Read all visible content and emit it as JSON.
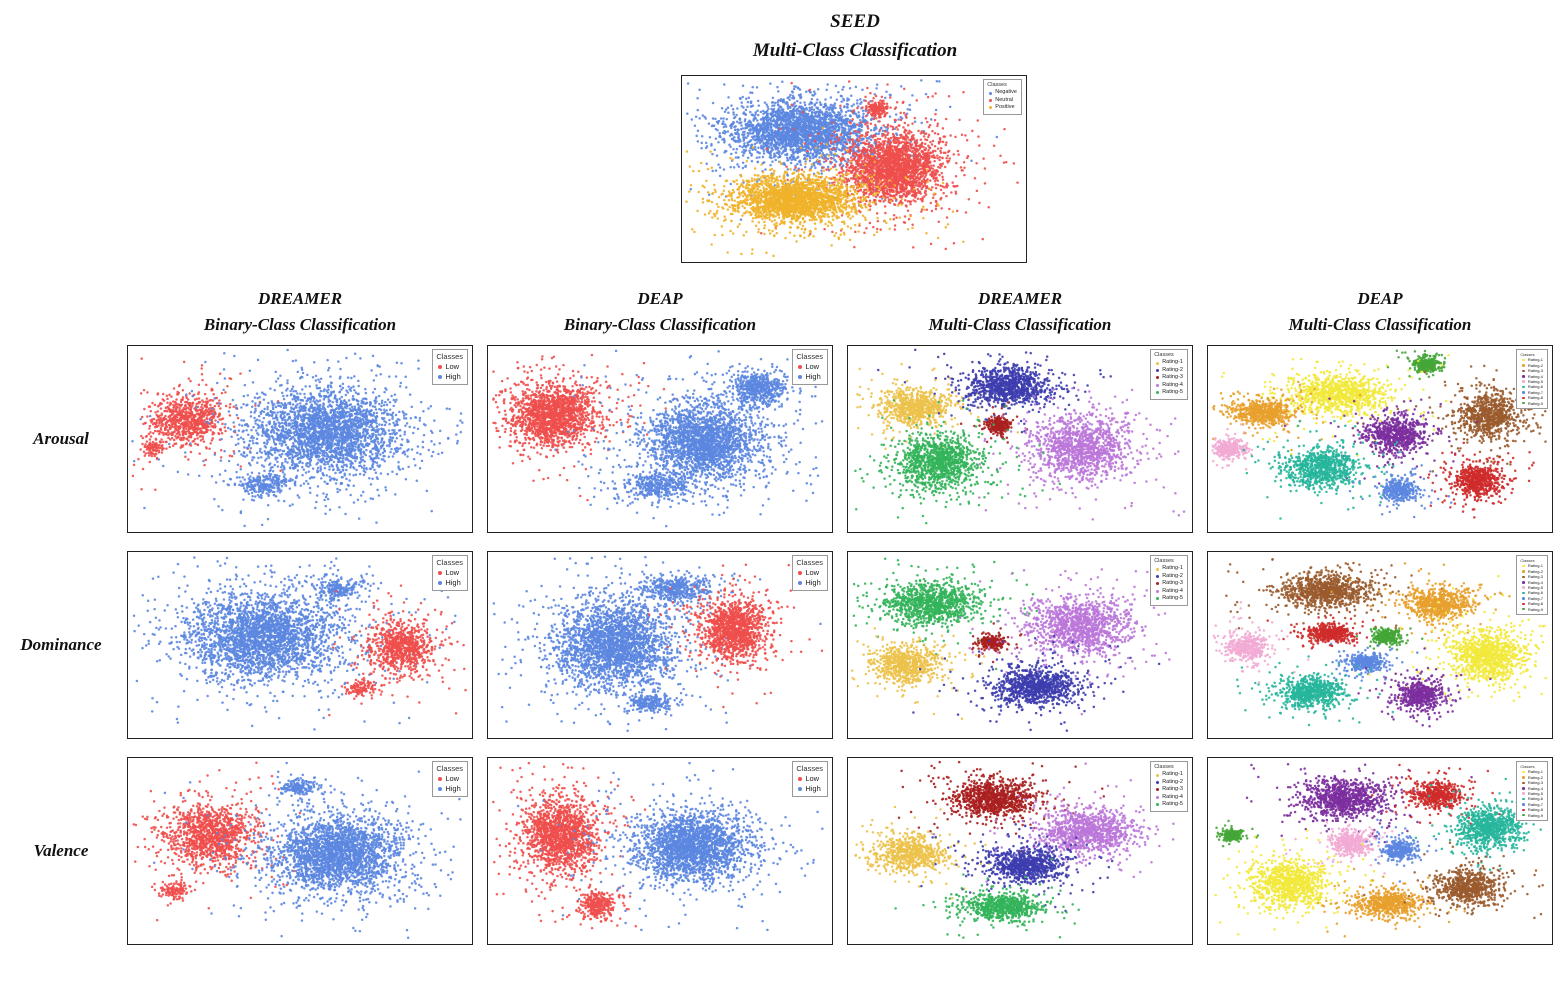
{
  "figure": {
    "seed": {
      "title_line1": "SEED",
      "title_line2": "Multi-Class Classification"
    },
    "columns": [
      {
        "title_line1": "DREAMER",
        "title_line2": "Binary-Class Classification"
      },
      {
        "title_line1": "DEAP",
        "title_line2": "Binary-Class Classification"
      },
      {
        "title_line1": "DREAMER",
        "title_line2": "Multi-Class Classification"
      },
      {
        "title_line1": "DEAP",
        "title_line2": "Multi-Class Classification"
      }
    ],
    "rows": [
      {
        "label": "Arousal"
      },
      {
        "label": "Dominance"
      },
      {
        "label": "Valence"
      }
    ]
  },
  "legends": {
    "seed": {
      "title": "Classes",
      "entries": [
        {
          "label": "Negative",
          "color": "#5c87e0"
        },
        {
          "label": "Neutral",
          "color": "#ee4f4d"
        },
        {
          "label": "Positive",
          "color": "#f0b32a"
        }
      ]
    },
    "binary": {
      "title": "Classes",
      "entries": [
        {
          "label": "Low",
          "color": "#ee4f4d"
        },
        {
          "label": "High",
          "color": "#5c87e0"
        }
      ]
    },
    "dreamer5": {
      "title": "Classes",
      "entries": [
        {
          "label": "Rating-1",
          "color": "#ecc24a"
        },
        {
          "label": "Rating-2",
          "color": "#3d3daf"
        },
        {
          "label": "Rating-3",
          "color": "#aa1f1f"
        },
        {
          "label": "Rating-4",
          "color": "#bb77d9"
        },
        {
          "label": "Rating-5",
          "color": "#33b45a"
        }
      ]
    },
    "deap9": {
      "title": "Classes",
      "entries": [
        {
          "label": "Rating-1",
          "color": "#f2e93c"
        },
        {
          "label": "Rating-2",
          "color": "#e8a02c"
        },
        {
          "label": "Rating-3",
          "color": "#9a5b2e"
        },
        {
          "label": "Rating-4",
          "color": "#7c2f9f"
        },
        {
          "label": "Rating-5",
          "color": "#f2abd4"
        },
        {
          "label": "Rating-6",
          "color": "#27b69c"
        },
        {
          "label": "Rating-7",
          "color": "#5c87e0"
        },
        {
          "label": "Rating-8",
          "color": "#cf2b2b"
        },
        {
          "label": "Rating-9",
          "color": "#44a637"
        }
      ]
    }
  },
  "chart_data": [
    {
      "id": "seed-multi",
      "type": "scatter",
      "dataset": "SEED",
      "task": "Multi-Class Classification",
      "legend": "seed",
      "clusters": [
        {
          "class": "Negative",
          "color": "#5c87e0",
          "cx": 0.35,
          "cy": 0.3,
          "rx": 0.2,
          "ry": 0.17,
          "n": 2600
        },
        {
          "class": "Neutral",
          "color": "#ee4f4d",
          "cx": 0.62,
          "cy": 0.5,
          "rx": 0.13,
          "ry": 0.18,
          "n": 2300
        },
        {
          "class": "Neutral",
          "color": "#ee4f4d",
          "cx": 0.57,
          "cy": 0.18,
          "rx": 0.03,
          "ry": 0.04,
          "n": 150
        },
        {
          "class": "Positive",
          "color": "#f0b32a",
          "cx": 0.33,
          "cy": 0.67,
          "rx": 0.17,
          "ry": 0.12,
          "n": 2300
        }
      ]
    },
    {
      "id": "arousal-dreamer-binary",
      "type": "scatter",
      "dataset": "DREAMER",
      "task": "Binary",
      "measure": "Arousal",
      "legend": "binary",
      "clusters": [
        {
          "class": "Low",
          "color": "#ee4f4d",
          "cx": 0.17,
          "cy": 0.4,
          "rx": 0.1,
          "ry": 0.13,
          "n": 800
        },
        {
          "class": "Low",
          "color": "#ee4f4d",
          "cx": 0.07,
          "cy": 0.55,
          "rx": 0.03,
          "ry": 0.04,
          "n": 90
        },
        {
          "class": "High",
          "color": "#5c87e0",
          "cx": 0.58,
          "cy": 0.47,
          "rx": 0.21,
          "ry": 0.23,
          "n": 2700
        },
        {
          "class": "High",
          "color": "#5c87e0",
          "cx": 0.4,
          "cy": 0.75,
          "rx": 0.07,
          "ry": 0.06,
          "n": 260
        }
      ]
    },
    {
      "id": "arousal-deap-binary",
      "type": "scatter",
      "dataset": "DEAP",
      "task": "Binary",
      "measure": "Arousal",
      "legend": "binary",
      "clusters": [
        {
          "class": "Low",
          "color": "#ee4f4d",
          "cx": 0.19,
          "cy": 0.37,
          "rx": 0.12,
          "ry": 0.16,
          "n": 1700
        },
        {
          "class": "High",
          "color": "#5c87e0",
          "cx": 0.63,
          "cy": 0.52,
          "rx": 0.16,
          "ry": 0.2,
          "n": 2300
        },
        {
          "class": "High",
          "color": "#5c87e0",
          "cx": 0.79,
          "cy": 0.23,
          "rx": 0.08,
          "ry": 0.09,
          "n": 550
        },
        {
          "class": "High",
          "color": "#5c87e0",
          "cx": 0.5,
          "cy": 0.76,
          "rx": 0.09,
          "ry": 0.07,
          "n": 380
        }
      ]
    },
    {
      "id": "arousal-dreamer-multi",
      "type": "scatter",
      "dataset": "DREAMER",
      "task": "Multi",
      "measure": "Arousal",
      "legend": "dreamer5",
      "clusters": [
        {
          "class": "Rating-1",
          "color": "#ecc24a",
          "cx": 0.2,
          "cy": 0.33,
          "rx": 0.1,
          "ry": 0.09,
          "n": 750
        },
        {
          "class": "Rating-2",
          "color": "#3d3daf",
          "cx": 0.47,
          "cy": 0.22,
          "rx": 0.12,
          "ry": 0.1,
          "n": 950
        },
        {
          "class": "Rating-3",
          "color": "#aa1f1f",
          "cx": 0.44,
          "cy": 0.43,
          "rx": 0.035,
          "ry": 0.045,
          "n": 230
        },
        {
          "class": "Rating-4",
          "color": "#bb77d9",
          "cx": 0.68,
          "cy": 0.55,
          "rx": 0.14,
          "ry": 0.16,
          "n": 1250
        },
        {
          "class": "Rating-5",
          "color": "#33b45a",
          "cx": 0.26,
          "cy": 0.63,
          "rx": 0.12,
          "ry": 0.14,
          "n": 1150
        }
      ]
    },
    {
      "id": "arousal-deap-multi",
      "type": "scatter",
      "dataset": "DEAP",
      "task": "Multi",
      "measure": "Arousal",
      "legend": "deap9",
      "clusters": [
        {
          "class": "Rating-9",
          "color": "#44a637",
          "cx": 0.64,
          "cy": 0.1,
          "rx": 0.04,
          "ry": 0.05,
          "n": 260
        },
        {
          "class": "Rating-1",
          "color": "#f2e93c",
          "cx": 0.38,
          "cy": 0.26,
          "rx": 0.13,
          "ry": 0.1,
          "n": 1050
        },
        {
          "class": "Rating-2",
          "color": "#e8a02c",
          "cx": 0.16,
          "cy": 0.36,
          "rx": 0.09,
          "ry": 0.07,
          "n": 620
        },
        {
          "class": "Rating-3",
          "color": "#9a5b2e",
          "cx": 0.82,
          "cy": 0.38,
          "rx": 0.09,
          "ry": 0.12,
          "n": 820
        },
        {
          "class": "Rating-5",
          "color": "#f2abd4",
          "cx": 0.06,
          "cy": 0.56,
          "rx": 0.045,
          "ry": 0.05,
          "n": 300
        },
        {
          "class": "Rating-4",
          "color": "#7c2f9f",
          "cx": 0.55,
          "cy": 0.48,
          "rx": 0.09,
          "ry": 0.1,
          "n": 720
        },
        {
          "class": "Rating-6",
          "color": "#27b69c",
          "cx": 0.33,
          "cy": 0.66,
          "rx": 0.1,
          "ry": 0.1,
          "n": 820
        },
        {
          "class": "Rating-8",
          "color": "#cf2b2b",
          "cx": 0.79,
          "cy": 0.73,
          "rx": 0.07,
          "ry": 0.08,
          "n": 620
        },
        {
          "class": "Rating-7",
          "color": "#5c87e0",
          "cx": 0.56,
          "cy": 0.78,
          "rx": 0.05,
          "ry": 0.06,
          "n": 360
        }
      ]
    },
    {
      "id": "dominance-dreamer-binary",
      "type": "scatter",
      "dataset": "DREAMER",
      "task": "Binary",
      "measure": "Dominance",
      "legend": "binary",
      "clusters": [
        {
          "class": "High",
          "color": "#5c87e0",
          "cx": 0.4,
          "cy": 0.46,
          "rx": 0.22,
          "ry": 0.22,
          "n": 2800
        },
        {
          "class": "High",
          "color": "#5c87e0",
          "cx": 0.62,
          "cy": 0.2,
          "rx": 0.06,
          "ry": 0.05,
          "n": 220
        },
        {
          "class": "Low",
          "color": "#ee4f4d",
          "cx": 0.8,
          "cy": 0.52,
          "rx": 0.09,
          "ry": 0.13,
          "n": 850
        },
        {
          "class": "Low",
          "color": "#ee4f4d",
          "cx": 0.68,
          "cy": 0.74,
          "rx": 0.04,
          "ry": 0.04,
          "n": 120
        }
      ]
    },
    {
      "id": "dominance-deap-binary",
      "type": "scatter",
      "dataset": "DEAP",
      "task": "Binary",
      "measure": "Dominance",
      "legend": "binary",
      "clusters": [
        {
          "class": "High",
          "color": "#5c87e0",
          "cx": 0.37,
          "cy": 0.5,
          "rx": 0.17,
          "ry": 0.22,
          "n": 2500
        },
        {
          "class": "High",
          "color": "#5c87e0",
          "cx": 0.55,
          "cy": 0.2,
          "rx": 0.1,
          "ry": 0.07,
          "n": 450
        },
        {
          "class": "High",
          "color": "#5c87e0",
          "cx": 0.47,
          "cy": 0.82,
          "rx": 0.06,
          "ry": 0.05,
          "n": 220
        },
        {
          "class": "Low",
          "color": "#ee4f4d",
          "cx": 0.72,
          "cy": 0.42,
          "rx": 0.09,
          "ry": 0.15,
          "n": 1300
        }
      ]
    },
    {
      "id": "dominance-dreamer-multi",
      "type": "scatter",
      "dataset": "DREAMER",
      "task": "Multi",
      "measure": "Dominance",
      "legend": "dreamer5",
      "clusters": [
        {
          "class": "Rating-5",
          "color": "#33b45a",
          "cx": 0.25,
          "cy": 0.28,
          "rx": 0.13,
          "ry": 0.11,
          "n": 1050
        },
        {
          "class": "Rating-1",
          "color": "#ecc24a",
          "cx": 0.17,
          "cy": 0.61,
          "rx": 0.1,
          "ry": 0.1,
          "n": 720
        },
        {
          "class": "Rating-3",
          "color": "#aa1f1f",
          "cx": 0.42,
          "cy": 0.49,
          "rx": 0.035,
          "ry": 0.04,
          "n": 210
        },
        {
          "class": "Rating-4",
          "color": "#bb77d9",
          "cx": 0.68,
          "cy": 0.4,
          "rx": 0.14,
          "ry": 0.15,
          "n": 1250
        },
        {
          "class": "Rating-2",
          "color": "#3d3daf",
          "cx": 0.55,
          "cy": 0.73,
          "rx": 0.12,
          "ry": 0.1,
          "n": 950
        }
      ]
    },
    {
      "id": "dominance-deap-multi",
      "type": "scatter",
      "dataset": "DEAP",
      "task": "Multi",
      "measure": "Dominance",
      "legend": "deap9",
      "clusters": [
        {
          "class": "Rating-3",
          "color": "#9a5b2e",
          "cx": 0.35,
          "cy": 0.21,
          "rx": 0.13,
          "ry": 0.09,
          "n": 950
        },
        {
          "class": "Rating-2",
          "color": "#e8a02c",
          "cx": 0.67,
          "cy": 0.28,
          "rx": 0.09,
          "ry": 0.08,
          "n": 680
        },
        {
          "class": "Rating-5",
          "color": "#f2abd4",
          "cx": 0.11,
          "cy": 0.52,
          "rx": 0.06,
          "ry": 0.07,
          "n": 420
        },
        {
          "class": "Rating-8",
          "color": "#cf2b2b",
          "cx": 0.36,
          "cy": 0.44,
          "rx": 0.06,
          "ry": 0.05,
          "n": 420
        },
        {
          "class": "Rating-9",
          "color": "#44a637",
          "cx": 0.52,
          "cy": 0.46,
          "rx": 0.04,
          "ry": 0.04,
          "n": 260
        },
        {
          "class": "Rating-7",
          "color": "#5c87e0",
          "cx": 0.46,
          "cy": 0.6,
          "rx": 0.06,
          "ry": 0.05,
          "n": 360
        },
        {
          "class": "Rating-1",
          "color": "#f2e93c",
          "cx": 0.82,
          "cy": 0.56,
          "rx": 0.11,
          "ry": 0.13,
          "n": 1050
        },
        {
          "class": "Rating-6",
          "color": "#27b69c",
          "cx": 0.3,
          "cy": 0.76,
          "rx": 0.09,
          "ry": 0.08,
          "n": 680
        },
        {
          "class": "Rating-4",
          "color": "#7c2f9f",
          "cx": 0.62,
          "cy": 0.78,
          "rx": 0.07,
          "ry": 0.08,
          "n": 560
        }
      ]
    },
    {
      "id": "valence-dreamer-binary",
      "type": "scatter",
      "dataset": "DREAMER",
      "task": "Binary",
      "measure": "Valence",
      "legend": "binary",
      "clusters": [
        {
          "class": "Low",
          "color": "#ee4f4d",
          "cx": 0.24,
          "cy": 0.42,
          "rx": 0.13,
          "ry": 0.17,
          "n": 1200
        },
        {
          "class": "Low",
          "color": "#ee4f4d",
          "cx": 0.14,
          "cy": 0.72,
          "rx": 0.04,
          "ry": 0.04,
          "n": 120
        },
        {
          "class": "High",
          "color": "#5c87e0",
          "cx": 0.61,
          "cy": 0.52,
          "rx": 0.18,
          "ry": 0.2,
          "n": 2500
        },
        {
          "class": "High",
          "color": "#5c87e0",
          "cx": 0.5,
          "cy": 0.16,
          "rx": 0.05,
          "ry": 0.04,
          "n": 160
        }
      ]
    },
    {
      "id": "valence-deap-binary",
      "type": "scatter",
      "dataset": "DEAP",
      "task": "Binary",
      "measure": "Valence",
      "legend": "binary",
      "clusters": [
        {
          "class": "Low",
          "color": "#ee4f4d",
          "cx": 0.21,
          "cy": 0.42,
          "rx": 0.1,
          "ry": 0.19,
          "n": 1600
        },
        {
          "class": "Low",
          "color": "#ee4f4d",
          "cx": 0.32,
          "cy": 0.8,
          "rx": 0.05,
          "ry": 0.07,
          "n": 300
        },
        {
          "class": "High",
          "color": "#5c87e0",
          "cx": 0.6,
          "cy": 0.48,
          "rx": 0.16,
          "ry": 0.18,
          "n": 2300
        }
      ]
    },
    {
      "id": "valence-dreamer-multi",
      "type": "scatter",
      "dataset": "DREAMER",
      "task": "Multi",
      "measure": "Valence",
      "legend": "dreamer5",
      "clusters": [
        {
          "class": "Rating-3",
          "color": "#aa1f1f",
          "cx": 0.43,
          "cy": 0.22,
          "rx": 0.12,
          "ry": 0.1,
          "n": 950
        },
        {
          "class": "Rating-1",
          "color": "#ecc24a",
          "cx": 0.18,
          "cy": 0.52,
          "rx": 0.1,
          "ry": 0.09,
          "n": 680
        },
        {
          "class": "Rating-4",
          "color": "#bb77d9",
          "cx": 0.7,
          "cy": 0.4,
          "rx": 0.13,
          "ry": 0.12,
          "n": 1050
        },
        {
          "class": "Rating-2",
          "color": "#3d3daf",
          "cx": 0.52,
          "cy": 0.58,
          "rx": 0.11,
          "ry": 0.09,
          "n": 850
        },
        {
          "class": "Rating-5",
          "color": "#33b45a",
          "cx": 0.45,
          "cy": 0.81,
          "rx": 0.11,
          "ry": 0.07,
          "n": 720
        }
      ]
    },
    {
      "id": "valence-deap-multi",
      "type": "scatter",
      "dataset": "DEAP",
      "task": "Multi",
      "measure": "Valence",
      "legend": "deap9",
      "clusters": [
        {
          "class": "Rating-4",
          "color": "#7c2f9f",
          "cx": 0.4,
          "cy": 0.22,
          "rx": 0.12,
          "ry": 0.1,
          "n": 950
        },
        {
          "class": "Rating-8",
          "color": "#cf2b2b",
          "cx": 0.67,
          "cy": 0.2,
          "rx": 0.07,
          "ry": 0.07,
          "n": 520
        },
        {
          "class": "Rating-6",
          "color": "#27b69c",
          "cx": 0.82,
          "cy": 0.38,
          "rx": 0.09,
          "ry": 0.11,
          "n": 820
        },
        {
          "class": "Rating-9",
          "color": "#44a637",
          "cx": 0.07,
          "cy": 0.42,
          "rx": 0.035,
          "ry": 0.03,
          "n": 190
        },
        {
          "class": "Rating-5",
          "color": "#f2abd4",
          "cx": 0.42,
          "cy": 0.46,
          "rx": 0.06,
          "ry": 0.06,
          "n": 420
        },
        {
          "class": "Rating-7",
          "color": "#5c87e0",
          "cx": 0.56,
          "cy": 0.5,
          "rx": 0.05,
          "ry": 0.05,
          "n": 320
        },
        {
          "class": "Rating-1",
          "color": "#f2e93c",
          "cx": 0.24,
          "cy": 0.68,
          "rx": 0.11,
          "ry": 0.12,
          "n": 950
        },
        {
          "class": "Rating-2",
          "color": "#e8a02c",
          "cx": 0.53,
          "cy": 0.79,
          "rx": 0.09,
          "ry": 0.07,
          "n": 620
        },
        {
          "class": "Rating-3",
          "color": "#9a5b2e",
          "cx": 0.76,
          "cy": 0.7,
          "rx": 0.09,
          "ry": 0.09,
          "n": 720
        }
      ]
    }
  ]
}
